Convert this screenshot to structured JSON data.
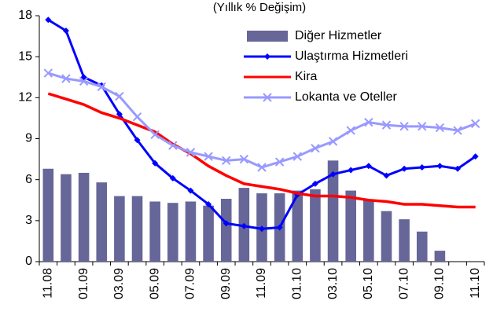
{
  "chart_data": {
    "type": "bar-line",
    "title": "(Yıllık % Değişim)",
    "categories": [
      "11.08",
      null,
      "01.09",
      null,
      "03.09",
      null,
      "05.09",
      null,
      "07.09",
      null,
      "09.09",
      null,
      "11.09",
      null,
      "01.10",
      null,
      "03.10",
      null,
      "05.10",
      null,
      "07.10",
      null,
      "09.10",
      null,
      "11.10"
    ],
    "series": [
      {
        "name": "Diğer Hizmetler",
        "type": "bar",
        "color": "#666699",
        "values": [
          6.8,
          6.4,
          6.5,
          5.8,
          4.8,
          4.8,
          4.4,
          4.3,
          4.4,
          4.1,
          4.6,
          5.4,
          5.0,
          5.0,
          5.2,
          5.3,
          7.4,
          5.2,
          4.5,
          3.7,
          3.1,
          2.2,
          0.8,
          null,
          null
        ]
      },
      {
        "name": "Ulaştırma Hizmetleri",
        "type": "line",
        "marker": "diamond",
        "color": "#0000ff",
        "values": [
          17.7,
          16.9,
          13.5,
          12.9,
          10.8,
          8.9,
          7.2,
          6.1,
          5.2,
          4.2,
          2.8,
          2.6,
          2.4,
          2.5,
          4.9,
          5.7,
          6.4,
          6.7,
          7.0,
          6.3,
          6.8,
          6.9,
          7.0,
          6.8,
          7.7
        ]
      },
      {
        "name": "Kira",
        "type": "line",
        "marker": "none",
        "color": "#ff0000",
        "values": [
          12.3,
          11.9,
          11.5,
          10.9,
          10.5,
          10.0,
          9.5,
          8.6,
          7.9,
          7.0,
          6.3,
          5.7,
          5.5,
          5.3,
          5.0,
          4.8,
          4.8,
          4.7,
          4.5,
          4.4,
          4.2,
          4.2,
          4.1,
          4.0,
          4.0
        ]
      },
      {
        "name": "Lokanta ve Oteller",
        "type": "line",
        "marker": "x",
        "color": "#9999ff",
        "values": [
          13.8,
          13.4,
          13.2,
          12.8,
          12.1,
          10.6,
          9.3,
          8.5,
          8.0,
          7.7,
          7.4,
          7.5,
          6.9,
          7.3,
          7.7,
          8.3,
          8.8,
          9.6,
          10.2,
          10.0,
          9.9,
          9.9,
          9.8,
          9.6,
          10.1
        ]
      }
    ],
    "ylim": [
      0,
      18
    ],
    "yticks": [
      0,
      3,
      6,
      9,
      12,
      15,
      18
    ],
    "grid": false,
    "legend": "upper right"
  }
}
